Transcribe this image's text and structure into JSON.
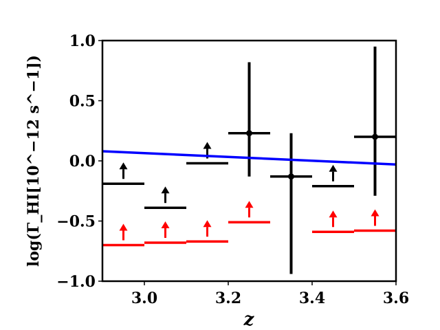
{
  "chart_data": {
    "type": "scatter",
    "xlabel": "z",
    "ylabel": "log(Γ_HI[10^−12 s^−1])",
    "xlim": [
      2.9,
      3.6
    ],
    "ylim": [
      -1.0,
      1.0
    ],
    "x_ticks": [
      "3.0",
      "3.2",
      "3.4",
      "3.6"
    ],
    "y_ticks": [
      "−1.0",
      "−0.5",
      "0.0",
      "0.5",
      "1.0"
    ],
    "grid": false,
    "colors": {
      "measurement": "#000000",
      "lower_limit_red": "#ff0000",
      "model_line": "#0000ff"
    },
    "series": [
      {
        "kind": "lower-limit",
        "color": "#000000",
        "points": [
          {
            "x": 2.95,
            "xerr": 0.05,
            "y": -0.19
          },
          {
            "x": 3.05,
            "xerr": 0.05,
            "y": -0.39
          },
          {
            "x": 3.15,
            "xerr": 0.05,
            "y": -0.02
          },
          {
            "x": 3.45,
            "xerr": 0.05,
            "y": -0.21
          }
        ]
      },
      {
        "kind": "measurement",
        "color": "#000000",
        "points": [
          {
            "x": 3.25,
            "xerr": 0.05,
            "y": 0.23,
            "ylo": -0.13,
            "yhi": 0.82
          },
          {
            "x": 3.35,
            "xerr": 0.05,
            "y": -0.13,
            "ylo": -0.94,
            "yhi": 0.23
          },
          {
            "x": 3.55,
            "xerr": 0.05,
            "y": 0.2,
            "ylo": -0.29,
            "yhi": 0.95
          }
        ]
      },
      {
        "kind": "lower-limit",
        "color": "#ff0000",
        "points": [
          {
            "x": 2.95,
            "xerr": 0.05,
            "y": -0.7
          },
          {
            "x": 3.05,
            "xerr": 0.05,
            "y": -0.68
          },
          {
            "x": 3.15,
            "xerr": 0.05,
            "y": -0.67
          },
          {
            "x": 3.25,
            "xerr": 0.05,
            "y": -0.51
          },
          {
            "x": 3.45,
            "xerr": 0.05,
            "y": -0.59
          },
          {
            "x": 3.55,
            "xerr": 0.05,
            "y": -0.58
          }
        ]
      },
      {
        "kind": "line",
        "color": "#0000ff",
        "x": [
          2.9,
          3.6
        ],
        "y": [
          0.08,
          -0.03
        ]
      }
    ]
  }
}
